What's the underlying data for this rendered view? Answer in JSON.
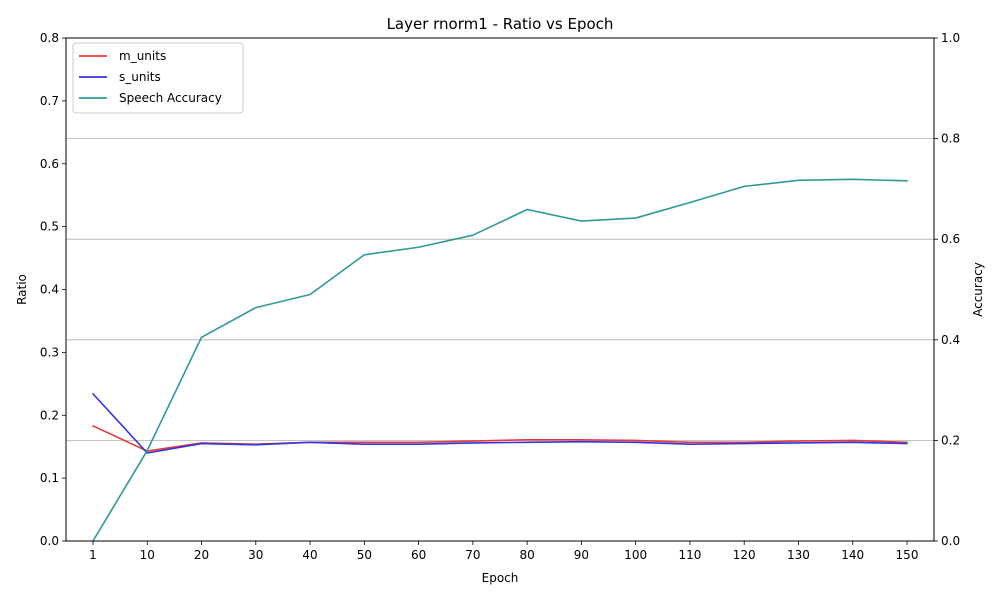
{
  "chart_data": {
    "type": "line",
    "title": "Layer rnorm1 - Ratio vs Epoch",
    "xlabel": "Epoch",
    "ylabel": "Ratio",
    "y2label": "Accuracy",
    "categories": [
      "1",
      "10",
      "20",
      "30",
      "40",
      "50",
      "60",
      "70",
      "80",
      "90",
      "100",
      "110",
      "120",
      "130",
      "140",
      "150"
    ],
    "ylim": [
      0,
      0.8
    ],
    "yticks": [
      "0.0",
      "0.1",
      "0.2",
      "0.3",
      "0.4",
      "0.5",
      "0.6",
      "0.7",
      "0.8"
    ],
    "y2lim": [
      0,
      1.0
    ],
    "y2ticks": [
      "0.0",
      "0.2",
      "0.4",
      "0.6",
      "0.8",
      "1.0"
    ],
    "grid": "horizontal lines at secondary axis ticks",
    "legend_position": "upper-left",
    "series": [
      {
        "name": "m_units",
        "axis": "left",
        "color": "#e83a3a",
        "values": [
          0.183,
          0.143,
          0.156,
          0.154,
          0.157,
          0.157,
          0.157,
          0.159,
          0.161,
          0.161,
          0.16,
          0.157,
          0.157,
          0.159,
          0.16,
          0.157
        ]
      },
      {
        "name": "s_units",
        "axis": "left",
        "color": "#3434e0",
        "values": [
          0.234,
          0.14,
          0.155,
          0.153,
          0.157,
          0.154,
          0.154,
          0.156,
          0.157,
          0.158,
          0.157,
          0.154,
          0.155,
          0.156,
          0.157,
          0.155
        ]
      },
      {
        "name": "Speech Accuracy",
        "axis": "right",
        "color": "#2e9a98",
        "values": [
          0.0,
          0.18,
          0.405,
          0.464,
          0.49,
          0.569,
          0.584,
          0.608,
          0.659,
          0.636,
          0.642,
          0.673,
          0.705,
          0.717,
          0.719,
          0.716
        ]
      }
    ]
  }
}
